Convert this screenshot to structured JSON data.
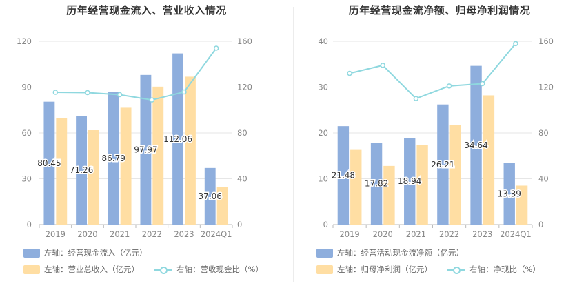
{
  "chart_data": [
    {
      "type": "bar",
      "title": "历年经营现金流入、营业收入情况",
      "categories": [
        "2019",
        "2020",
        "2021",
        "2022",
        "2023",
        "2024Q1"
      ],
      "left_axis": {
        "ylim": [
          0,
          120
        ],
        "ticks": [
          "0",
          "30",
          "60",
          "90",
          "120"
        ]
      },
      "right_axis": {
        "ylim": [
          0,
          160
        ],
        "ticks": [
          "0",
          "40",
          "80",
          "120",
          "160"
        ]
      },
      "series": [
        {
          "name": "左轴：经营现金流入（亿元）",
          "type": "bar",
          "axis": "left",
          "color": "#8eaedd",
          "values": [
            80.45,
            71.26,
            86.79,
            97.97,
            112.06,
            37.06
          ],
          "labels": [
            "80.45",
            "71.26",
            "86.79",
            "97.97",
            "112.06",
            "37.06"
          ]
        },
        {
          "name": "左轴：营业总收入（亿元）",
          "type": "bar",
          "axis": "left",
          "color": "#ffdea3",
          "values": [
            69.5,
            61.8,
            76.5,
            90.3,
            96.8,
            24.4
          ]
        },
        {
          "name": "右轴：营收现金比（%）",
          "type": "line",
          "axis": "right",
          "color": "#8fd8df",
          "values": [
            115.5,
            115.2,
            113.4,
            108.8,
            115.8,
            154.0
          ]
        }
      ]
    },
    {
      "type": "bar",
      "title": "历年经营现金流净额、归母净利润情况",
      "categories": [
        "2019",
        "2020",
        "2021",
        "2022",
        "2023",
        "2024Q1"
      ],
      "left_axis": {
        "ylim": [
          0,
          40
        ],
        "ticks": [
          "0",
          "10",
          "20",
          "30",
          "40"
        ]
      },
      "right_axis": {
        "ylim": [
          0,
          160
        ],
        "ticks": [
          "0",
          "40",
          "80",
          "120",
          "160"
        ]
      },
      "series": [
        {
          "name": "左轴：经营活动现金流净额（亿元）",
          "type": "bar",
          "axis": "left",
          "color": "#8eaedd",
          "values": [
            21.48,
            17.82,
            18.94,
            26.21,
            34.64,
            13.39
          ],
          "labels": [
            "21.48",
            "17.82",
            "18.94",
            "26.21",
            "34.64",
            "13.39"
          ]
        },
        {
          "name": "左轴：归母净利润（亿元）",
          "type": "bar",
          "axis": "left",
          "color": "#ffdea3",
          "values": [
            16.3,
            12.8,
            17.3,
            21.8,
            28.2,
            8.5
          ]
        },
        {
          "name": "右轴：净现比（%）",
          "type": "line",
          "axis": "right",
          "color": "#8fd8df",
          "values": [
            132.0,
            139.0,
            110.0,
            121.0,
            123.0,
            158.0
          ]
        }
      ]
    }
  ]
}
